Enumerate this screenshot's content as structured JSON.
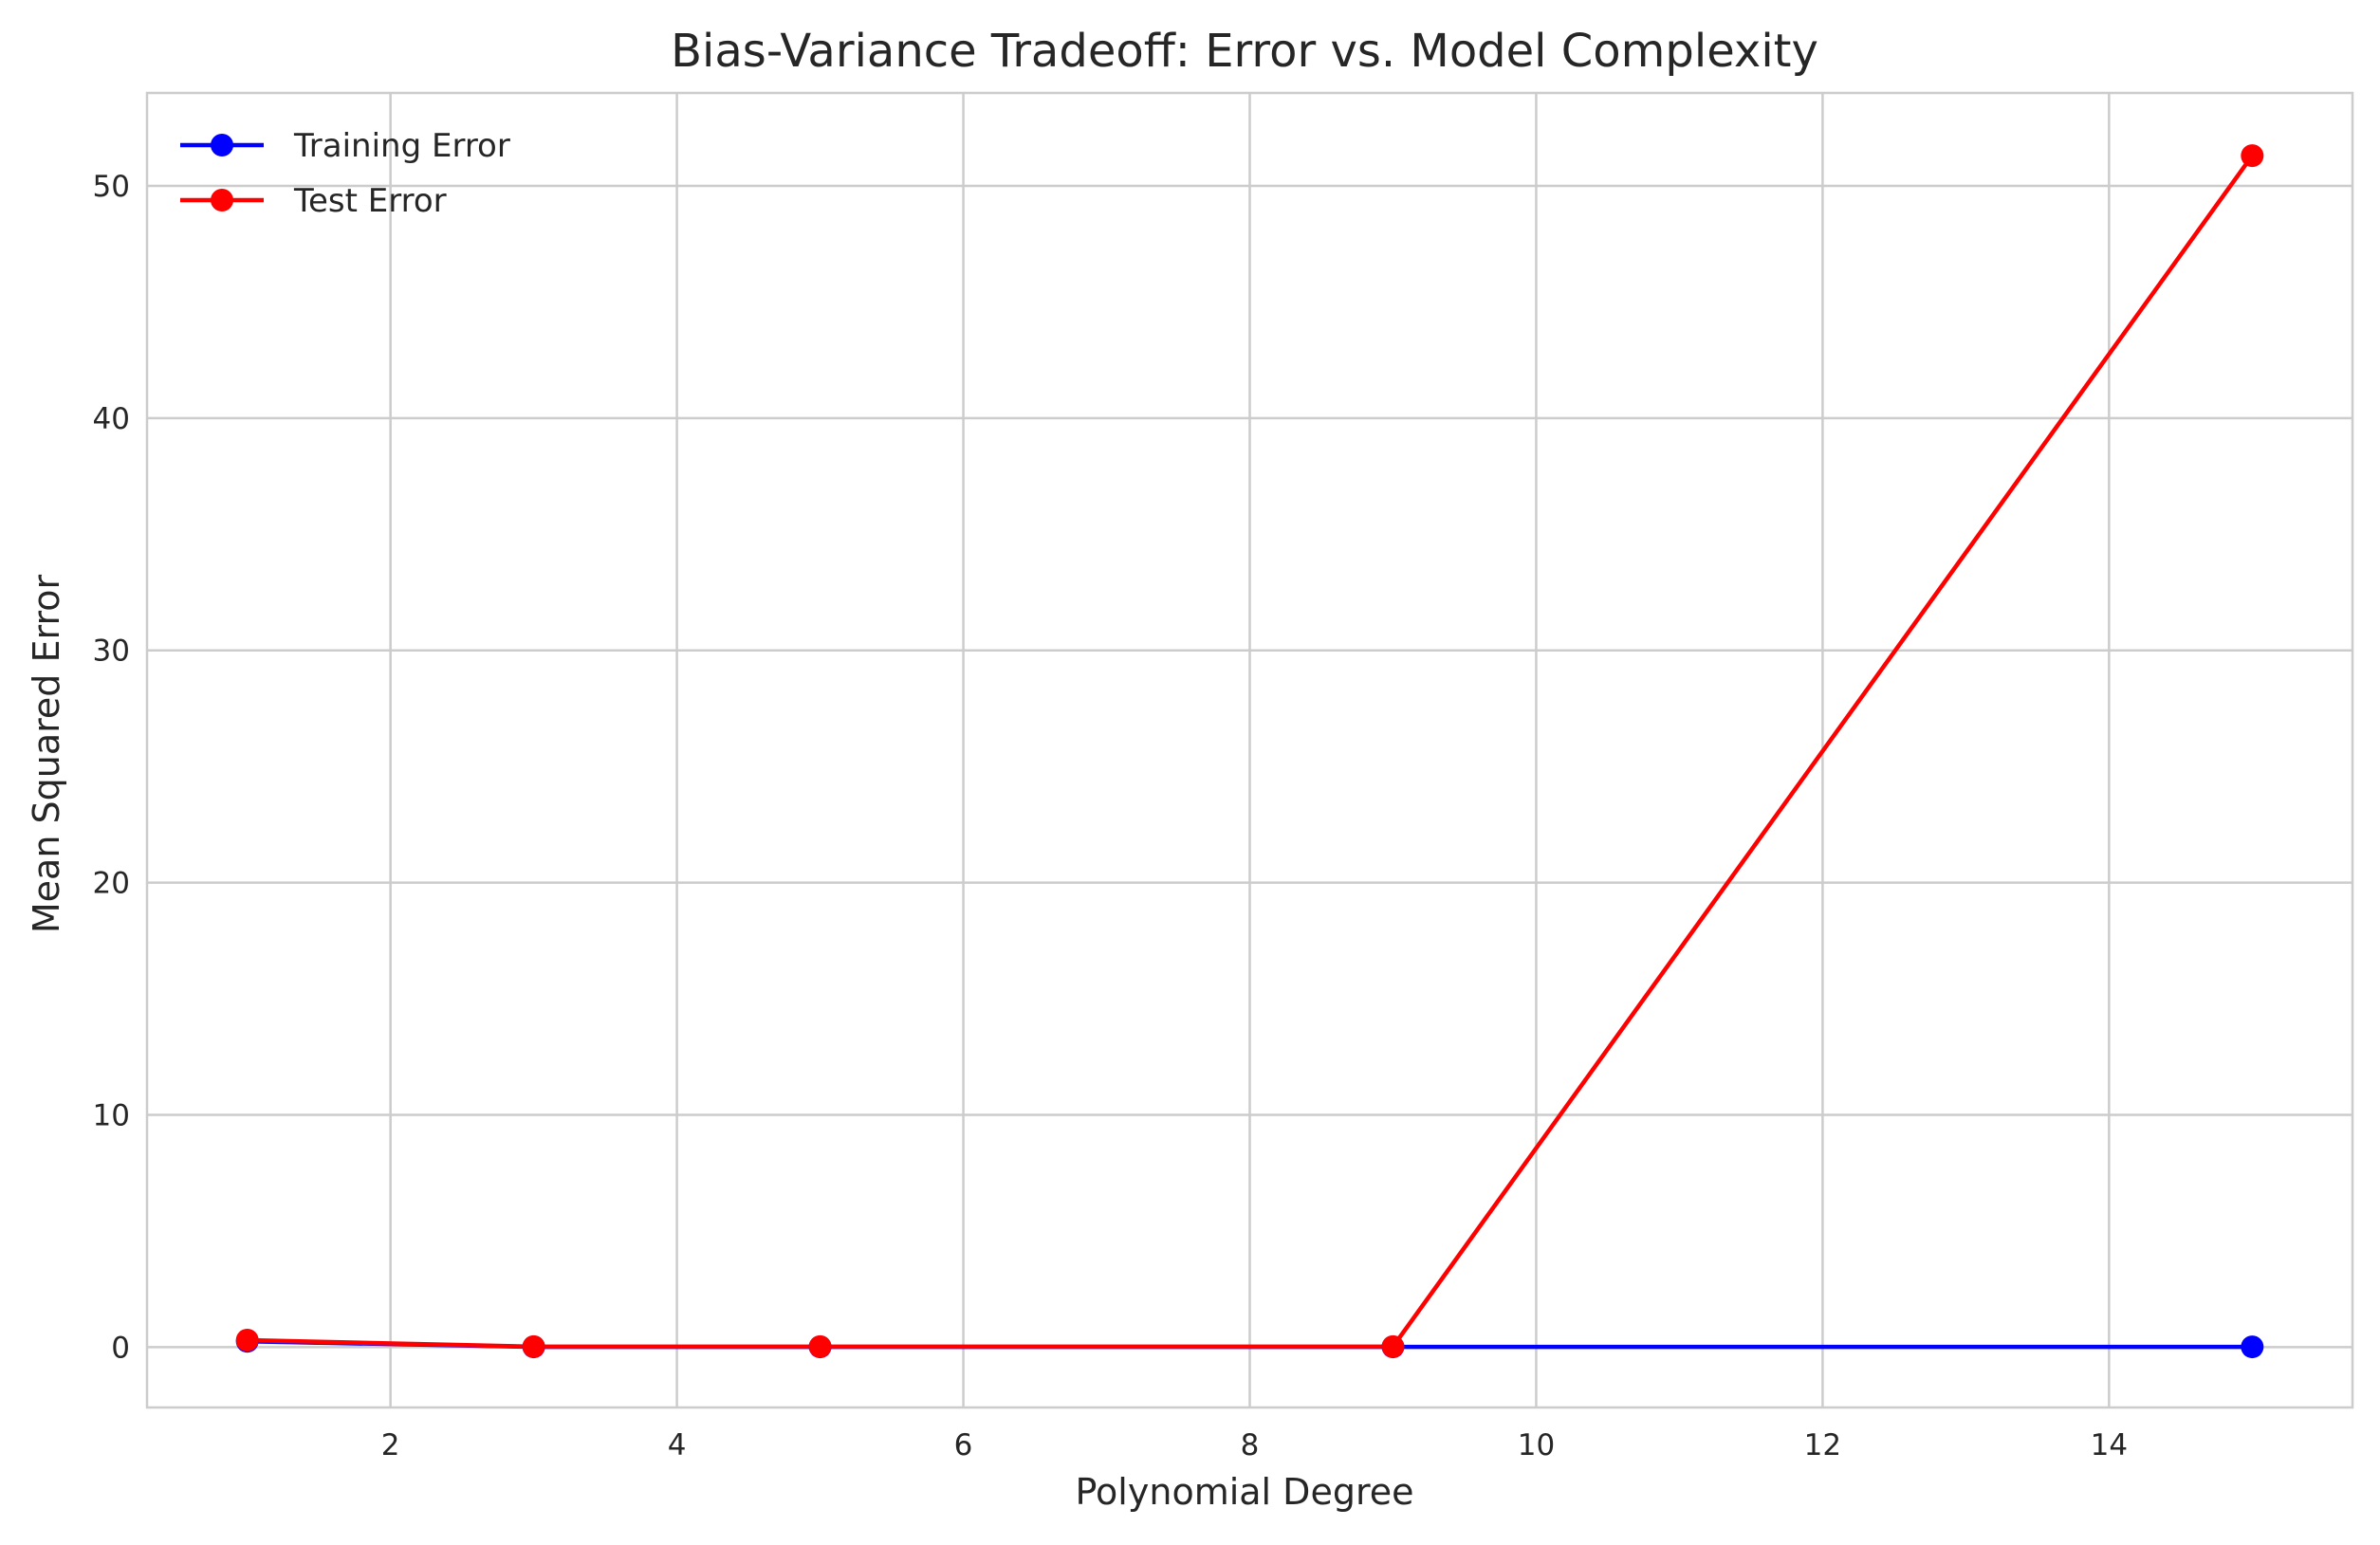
{
  "chart_data": {
    "type": "line",
    "title": "Bias-Variance Tradeoff: Error vs. Model Complexity",
    "xlabel": "Polynomial Degree",
    "ylabel": "Mean Squared Error",
    "xlim": [
      0.3,
      15.7
    ],
    "ylim": [
      -2.6,
      54
    ],
    "xticks": [
      2,
      4,
      6,
      8,
      10,
      12,
      14
    ],
    "yticks": [
      0,
      10,
      20,
      30,
      40,
      50
    ],
    "grid": true,
    "legend_position": "top-left",
    "x": [
      1,
      3,
      5,
      9,
      15
    ],
    "series": [
      {
        "name": "Training Error",
        "color": "#0000ff",
        "marker": "circle",
        "values": [
          0.25,
          0.01,
          0.01,
          0.01,
          0.01
        ]
      },
      {
        "name": "Test Error",
        "color": "#ff0000",
        "marker": "circle",
        "values": [
          0.3,
          0.02,
          0.02,
          0.02,
          51.3
        ]
      }
    ]
  }
}
